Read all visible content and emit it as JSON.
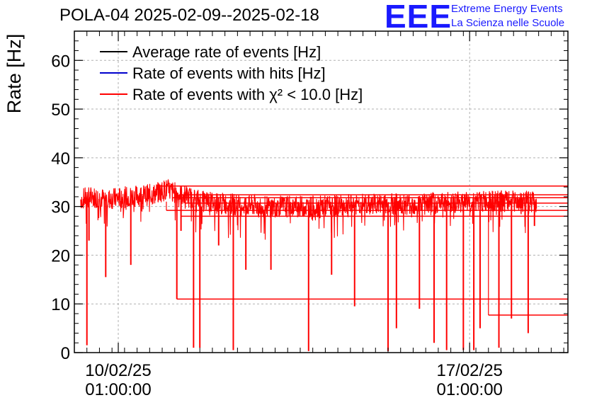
{
  "header": {
    "title": "POLA-04 2025-02-09--2025-02-18",
    "logo_mark": "EEE",
    "logo_line1": "Extreme Energy Events",
    "logo_line2": "La Scienza nelle Scuole"
  },
  "chart_data": {
    "type": "line",
    "title": "POLA-04 2025-02-09--2025-02-18",
    "ylabel": "Rate [Hz]",
    "xlabel": "",
    "ylim": [
      0,
      66
    ],
    "xlim": [
      "2025-02-09 04:00",
      "2025-02-19 00:00"
    ],
    "yticks": [
      0,
      10,
      20,
      30,
      40,
      50,
      60
    ],
    "xticks": [
      {
        "at": "2025-02-10 01:00",
        "line1": "10/02/25",
        "line2": "01:00:00"
      },
      {
        "at": "2025-02-17 01:00",
        "line1": "17/02/25",
        "line2": "01:00:00"
      }
    ],
    "grid": true,
    "legend_position": "top-left",
    "series": [
      {
        "name": "Average rate of events [Hz]",
        "color": "#000000",
        "values": []
      },
      {
        "name": "Rate of events with hits [Hz]",
        "color": "#0000cc",
        "values": []
      },
      {
        "name": "Rate of events with χ² < 10.0 [Hz]",
        "color": "#ff0000",
        "baseline": [
          [
            "2025-02-09 07:00",
            31.5
          ],
          [
            "2025-02-09 12:00",
            32.0
          ],
          [
            "2025-02-09 20:00",
            31.5
          ],
          [
            "2025-02-10 06:00",
            32.0
          ],
          [
            "2025-02-10 18:00",
            32.5
          ],
          [
            "2025-02-11 00:00",
            33.5
          ],
          [
            "2025-02-11 06:00",
            32.5
          ],
          [
            "2025-02-11 18:00",
            31.0
          ],
          [
            "2025-02-12 06:00",
            30.5
          ],
          [
            "2025-02-13 00:00",
            30.0
          ],
          [
            "2025-02-14 00:00",
            30.0
          ],
          [
            "2025-02-15 00:00",
            30.5
          ],
          [
            "2025-02-16 00:00",
            30.5
          ],
          [
            "2025-02-17 00:00",
            31.0
          ],
          [
            "2025-02-18 00:00",
            31.0
          ],
          [
            "2025-02-18 09:00",
            31.0
          ]
        ],
        "dips": [
          [
            "2025-02-09 10:00",
            1.5
          ],
          [
            "2025-02-09 11:00",
            23.0
          ],
          [
            "2025-02-09 19:00",
            15.5
          ],
          [
            "2025-02-10 07:00",
            18.0
          ],
          [
            "2025-02-11 05:00",
            11.0
          ],
          [
            "2025-02-11 07:00",
            25.0
          ],
          [
            "2025-02-11 13:00",
            1.0
          ],
          [
            "2025-02-11 16:00",
            1.0
          ],
          [
            "2025-02-12 01:00",
            22.0
          ],
          [
            "2025-02-12 08:00",
            0.5
          ],
          [
            "2025-02-12 14:00",
            17.0
          ],
          [
            "2025-02-13 02:00",
            17.0
          ],
          [
            "2025-02-13 20:00",
            0.3
          ],
          [
            "2025-02-14 07:00",
            16.0
          ],
          [
            "2025-02-14 18:00",
            9.5
          ],
          [
            "2025-02-15 10:00",
            0.3
          ],
          [
            "2025-02-15 14:00",
            5.0
          ],
          [
            "2025-02-16 01:00",
            9.0
          ],
          [
            "2025-02-16 08:00",
            2.0
          ],
          [
            "2025-02-16 14:00",
            0.5
          ],
          [
            "2025-02-16 22:00",
            0.5
          ],
          [
            "2025-02-17 03:00",
            0.5
          ],
          [
            "2025-02-17 06:00",
            5.0
          ],
          [
            "2025-02-17 15:00",
            1.0
          ],
          [
            "2025-02-17 21:00",
            7.0
          ],
          [
            "2025-02-18 05:00",
            4.0
          ],
          [
            "2025-02-18 08:00",
            26.0
          ]
        ],
        "gap_segments": [
          [
            "2025-02-10 20:00",
            "2025-02-19 00:00",
            34.2
          ],
          [
            "2025-02-11 06:00",
            "2025-02-19 00:00",
            32.4
          ],
          [
            "2025-02-11 03:00",
            "2025-02-19 00:00",
            31.8
          ],
          [
            "2025-02-11 09:00",
            "2025-02-19 00:00",
            30.7
          ],
          [
            "2025-02-11 00:00",
            "2025-02-19 00:00",
            29.2
          ],
          [
            "2025-02-11 07:00",
            "2025-02-19 00:00",
            28.0
          ],
          [
            "2025-02-11 05:00",
            "2025-02-19 00:00",
            11.0
          ],
          [
            "2025-02-17 10:00",
            "2025-02-19 00:00",
            7.7
          ]
        ]
      }
    ]
  }
}
